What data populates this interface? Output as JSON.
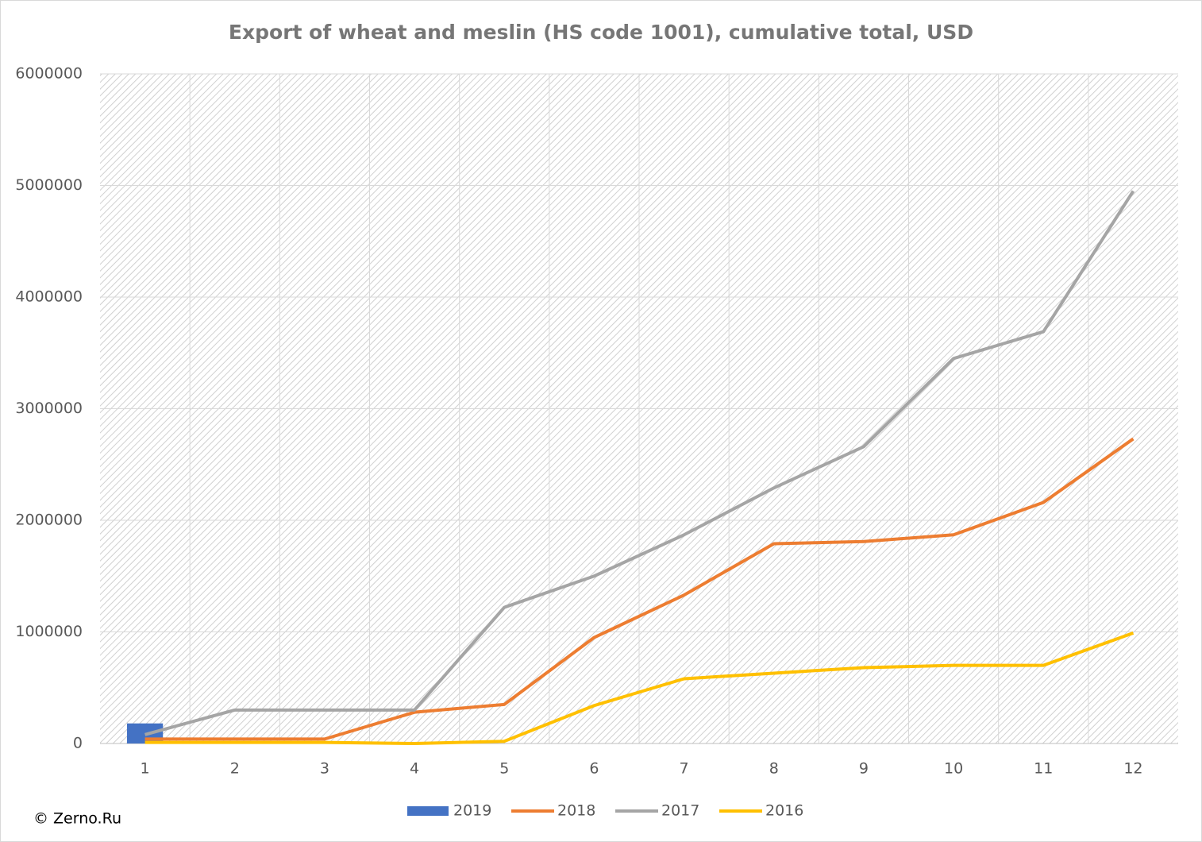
{
  "chart_data": {
    "type": "line",
    "title": "Export of wheat and meslin (HS code 1001), cumulative total, USD",
    "source": "© Zerno.Ru",
    "categories": [
      "1",
      "2",
      "3",
      "4",
      "5",
      "6",
      "7",
      "8",
      "9",
      "10",
      "11",
      "12"
    ],
    "series": [
      {
        "name": "2019",
        "type": "bar",
        "color": "#4472c4",
        "values": [
          180000,
          null,
          null,
          null,
          null,
          null,
          null,
          null,
          null,
          null,
          null,
          null
        ]
      },
      {
        "name": "2018",
        "type": "line",
        "color": "#ed7d31",
        "values": [
          40000,
          40000,
          40000,
          280000,
          350000,
          950000,
          1330000,
          1790000,
          1810000,
          1870000,
          2160000,
          2730000
        ]
      },
      {
        "name": "2017",
        "type": "line",
        "color": "#a5a5a5",
        "values": [
          80000,
          300000,
          300000,
          300000,
          1220000,
          1500000,
          1870000,
          2290000,
          2660000,
          3450000,
          3690000,
          4950000
        ]
      },
      {
        "name": "2016",
        "type": "line",
        "color": "#ffc000",
        "values": [
          10000,
          10000,
          10000,
          0,
          20000,
          340000,
          580000,
          630000,
          680000,
          700000,
          700000,
          990000
        ]
      }
    ],
    "ylim": [
      0,
      6000000
    ],
    "yticks": [
      0,
      1000000,
      2000000,
      3000000,
      4000000,
      5000000,
      6000000
    ],
    "grid": true,
    "legend": "bottom"
  }
}
